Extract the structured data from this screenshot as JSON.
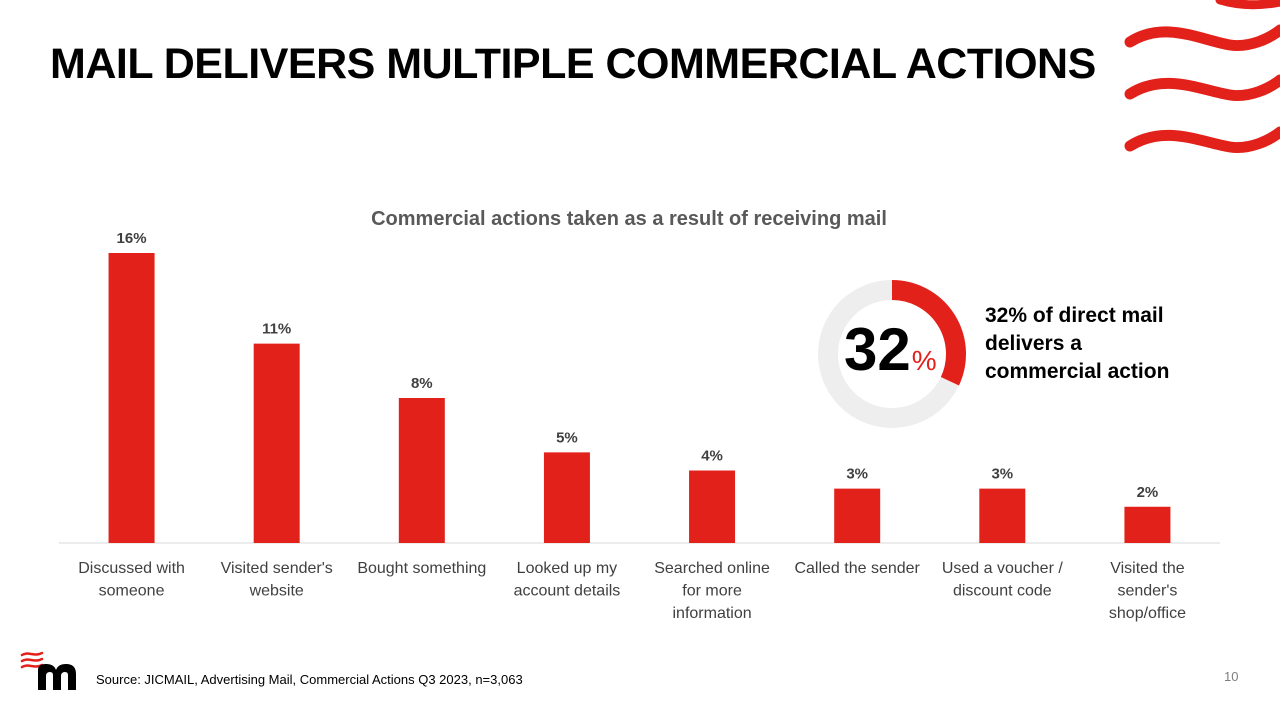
{
  "slide": {
    "title": "MAIL DELIVERS MULTIPLE COMMERCIAL ACTIONS",
    "source": "Source: JICMAIL, Advertising Mail, Commercial Actions Q3 2023, n=3,063",
    "page_number": "10"
  },
  "colors": {
    "accent": "#e3211b",
    "donut_track": "#eeeeee",
    "axis": "#d9d9d9",
    "label_text": "#404040"
  },
  "icons": {
    "logo": "jicmail-m-logo",
    "decoration": "red-wave-lines"
  },
  "highlight": {
    "number": "32",
    "unit": "%",
    "value_fraction": 0.32,
    "text": "32% of direct mail delivers a commercial action"
  },
  "chart_data": {
    "type": "bar",
    "title": "Commercial actions taken as a result of receiving mail",
    "xlabel": "",
    "ylabel": "",
    "ylim": [
      0,
      16
    ],
    "grid": false,
    "categories": [
      [
        "Discussed with",
        "someone"
      ],
      [
        "Visited sender's",
        "website"
      ],
      [
        "Bought something"
      ],
      [
        "Looked up my",
        "account details"
      ],
      [
        "Searched online",
        "for more",
        "information"
      ],
      [
        "Called the sender"
      ],
      [
        "Used a voucher /",
        "discount code"
      ],
      [
        "Visited the",
        "sender's",
        "shop/office"
      ]
    ],
    "values": [
      16,
      11,
      8,
      5,
      4,
      3,
      3,
      2
    ],
    "data_labels": [
      "16%",
      "11%",
      "8%",
      "5%",
      "4%",
      "3%",
      "3%",
      "2%"
    ]
  }
}
